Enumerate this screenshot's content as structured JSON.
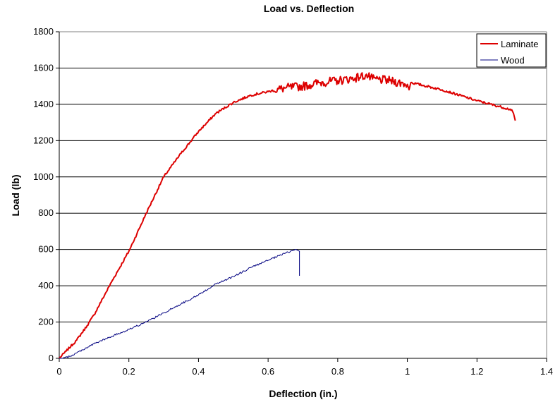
{
  "chart_data": {
    "type": "line",
    "title": "Load vs. Deflection",
    "xlabel": "Deflection (in.)",
    "ylabel": "Load (lb)",
    "xlim": [
      0,
      1.4
    ],
    "ylim": [
      0,
      1800
    ],
    "x_ticks": [
      0,
      0.2,
      0.4,
      0.6,
      0.8,
      1.0,
      1.2,
      1.4
    ],
    "x_tick_labels": [
      "0",
      "0.2",
      "0.4",
      "0.6",
      "0.8",
      "1",
      "1.2",
      "1.4"
    ],
    "y_ticks": [
      0,
      200,
      400,
      600,
      800,
      1000,
      1200,
      1400,
      1600,
      1800
    ],
    "y_tick_labels": [
      "0",
      "200",
      "400",
      "600",
      "800",
      "1000",
      "1200",
      "1400",
      "1600",
      "1800"
    ],
    "grid": "horizontal",
    "legend_position": "top-right",
    "series": [
      {
        "name": "Laminate",
        "color": "#dd0000",
        "x": [
          0,
          0.02,
          0.05,
          0.08,
          0.1,
          0.15,
          0.2,
          0.25,
          0.3,
          0.35,
          0.4,
          0.45,
          0.5,
          0.55,
          0.6,
          0.65,
          0.7,
          0.75,
          0.8,
          0.85,
          0.88,
          0.9,
          0.95,
          1.0,
          1.005,
          1.01,
          1.1,
          1.2,
          1.3,
          1.305,
          1.31
        ],
        "y": [
          0,
          40,
          100,
          180,
          240,
          420,
          590,
          800,
          1000,
          1130,
          1250,
          1350,
          1410,
          1450,
          1470,
          1490,
          1500,
          1520,
          1530,
          1545,
          1560,
          1540,
          1530,
          1510,
          1480,
          1520,
          1480,
          1420,
          1370,
          1350,
          1310
        ]
      },
      {
        "name": "Wood",
        "color": "#000080",
        "x": [
          0,
          0.01,
          0.03,
          0.05,
          0.1,
          0.15,
          0.2,
          0.25,
          0.3,
          0.35,
          0.4,
          0.45,
          0.5,
          0.55,
          0.6,
          0.65,
          0.68,
          0.69,
          0.69
        ],
        "y": [
          0,
          0,
          10,
          30,
          80,
          120,
          160,
          200,
          250,
          300,
          350,
          410,
          450,
          500,
          540,
          580,
          600,
          590,
          455
        ]
      }
    ]
  }
}
